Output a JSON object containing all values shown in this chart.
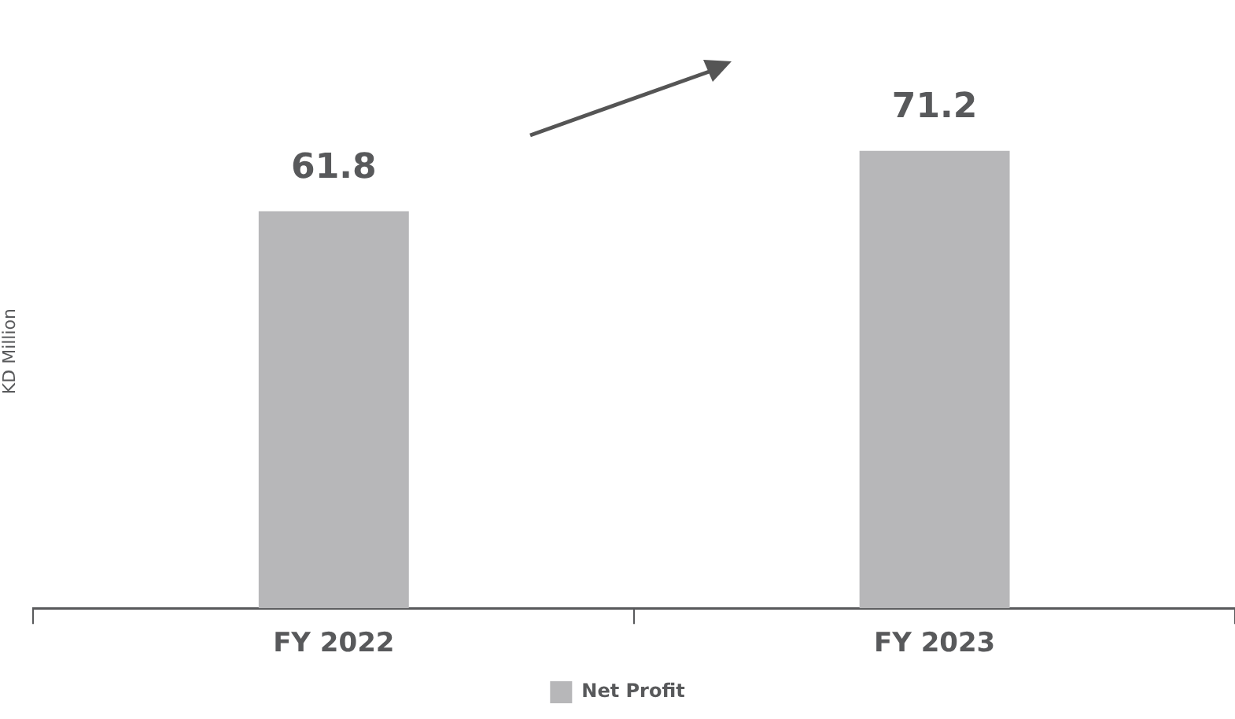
{
  "chart_data": {
    "type": "bar",
    "ylabel": "KD Million",
    "categories": [
      "FY 2022",
      "FY 2023"
    ],
    "series": [
      {
        "name": "Net Profit",
        "color": "#b7b7b9",
        "values": [
          61.8,
          71.2
        ]
      }
    ],
    "data_labels": true,
    "legend": "bottom",
    "grid": false
  }
}
